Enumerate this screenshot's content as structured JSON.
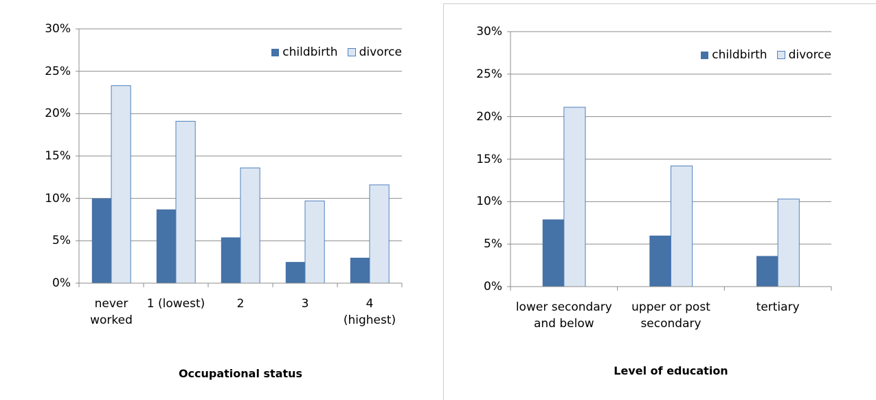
{
  "chart_data": [
    {
      "type": "bar",
      "x_label": "Occupational status",
      "categories": [
        "never worked",
        "1 (lowest)",
        "2",
        "3",
        "4 (highest)"
      ],
      "series": [
        {
          "name": "childbirth",
          "color": "#4572a7",
          "values": [
            10.0,
            8.7,
            5.4,
            2.5,
            3.0
          ]
        },
        {
          "name": "divorce",
          "color": "#dce6f2",
          "values": [
            23.3,
            19.1,
            13.6,
            9.7,
            11.6
          ]
        }
      ],
      "ylim": [
        0,
        30
      ],
      "yticks": [
        {
          "value": 0,
          "label": "0%"
        },
        {
          "value": 5,
          "label": "5%"
        },
        {
          "value": 10,
          "label": "10%"
        },
        {
          "value": 15,
          "label": "15%"
        },
        {
          "value": 20,
          "label": "20%"
        },
        {
          "value": 25,
          "label": "25%"
        },
        {
          "value": 30,
          "label": "30%"
        }
      ],
      "grid": true,
      "legend": "upper right"
    },
    {
      "type": "bar",
      "x_label": "Level of education",
      "categories": [
        "lower secondary and below",
        "upper or post secondary",
        "tertiary"
      ],
      "series": [
        {
          "name": "childbirth",
          "color": "#4572a7",
          "values": [
            7.9,
            6.0,
            3.6
          ]
        },
        {
          "name": "divorce",
          "color": "#dce6f2",
          "values": [
            21.1,
            14.2,
            10.3
          ]
        }
      ],
      "ylim": [
        0,
        30
      ],
      "yticks": [
        {
          "value": 0,
          "label": "0%"
        },
        {
          "value": 5,
          "label": "5%"
        },
        {
          "value": 10,
          "label": "10%"
        },
        {
          "value": 15,
          "label": "15%"
        },
        {
          "value": 20,
          "label": "20%"
        },
        {
          "value": 25,
          "label": "25%"
        },
        {
          "value": 30,
          "label": "30%"
        }
      ],
      "grid": true,
      "legend": "upper right"
    }
  ]
}
